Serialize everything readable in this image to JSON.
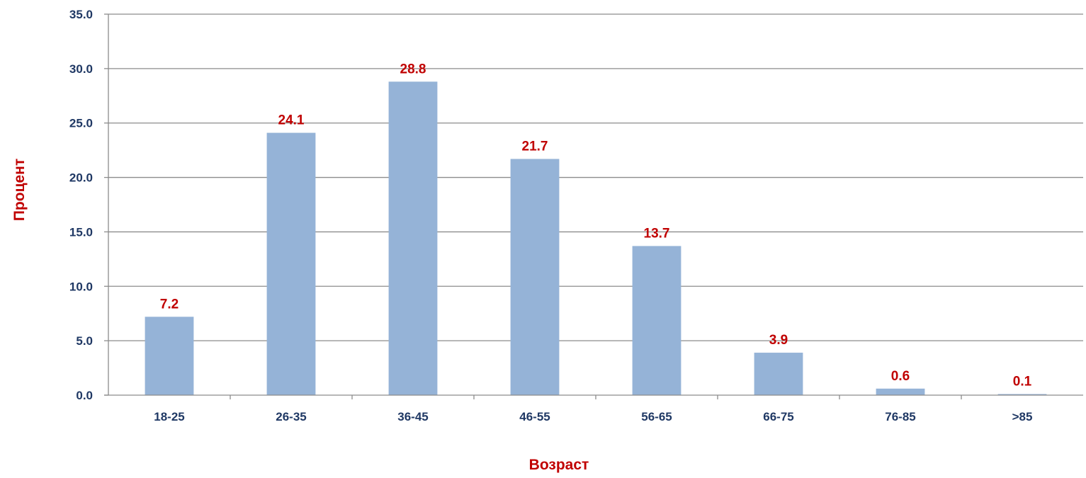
{
  "chart_data": {
    "type": "bar",
    "title": "",
    "xlabel": "Возраст",
    "ylabel": "Процент",
    "categories": [
      "18-25",
      "26-35",
      "36-45",
      "46-55",
      "56-65",
      "66-75",
      "76-85",
      ">85"
    ],
    "values": [
      7.2,
      24.1,
      28.8,
      21.7,
      13.7,
      3.9,
      0.6,
      0.1
    ],
    "value_labels": [
      "7.2",
      "24.1",
      "28.8",
      "21.7",
      "13.7",
      "3.9",
      "0.6",
      "0.1"
    ],
    "ylim": [
      0,
      35
    ],
    "yticks": [
      0,
      5,
      10,
      15,
      20,
      25,
      30,
      35
    ],
    "ytick_labels": [
      "0.0",
      "5.0",
      "10.0",
      "15.0",
      "20.0",
      "25.0",
      "30.0",
      "35.0"
    ],
    "grid": "horizontal",
    "legend": "none",
    "colors": {
      "bar": "#95b3d7",
      "data_label": "#c00000",
      "axis_title": "#c00000",
      "tick_label": "#1f3864",
      "gridline": "#8c8c8c",
      "axis": "#8c8c8c"
    }
  }
}
